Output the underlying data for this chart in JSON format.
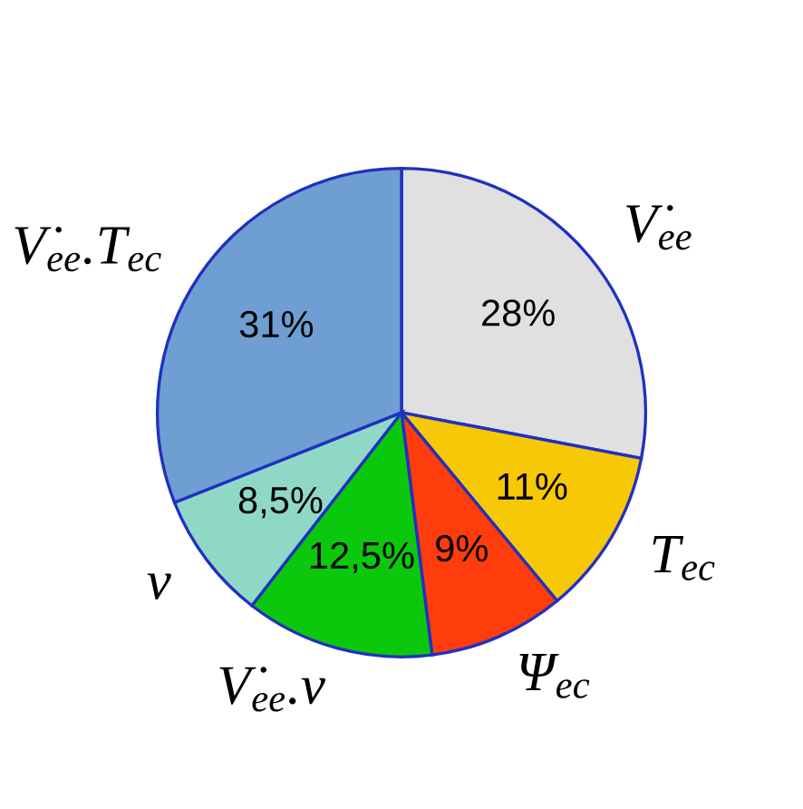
{
  "chart_data": {
    "type": "pie",
    "categories": [
      "V̇$_{ee}$",
      "T$_{ec}$",
      "Ψ$_{ec}$",
      "V̇$_{ee}$.ν",
      "ν",
      "V̇$_{ee}$.T$_{ec}$"
    ],
    "values": [
      28,
      11,
      9,
      12.5,
      8.5,
      31
    ],
    "value_labels": [
      "28%",
      "11%",
      "9%",
      "12,5%",
      "8,5%",
      "31%"
    ],
    "colors": [
      "#e0e0e0",
      "#f6c806",
      "#fe3c0c",
      "#0cc80c",
      "#8fd8c6",
      "#6f9ed2"
    ],
    "legend": false
  }
}
